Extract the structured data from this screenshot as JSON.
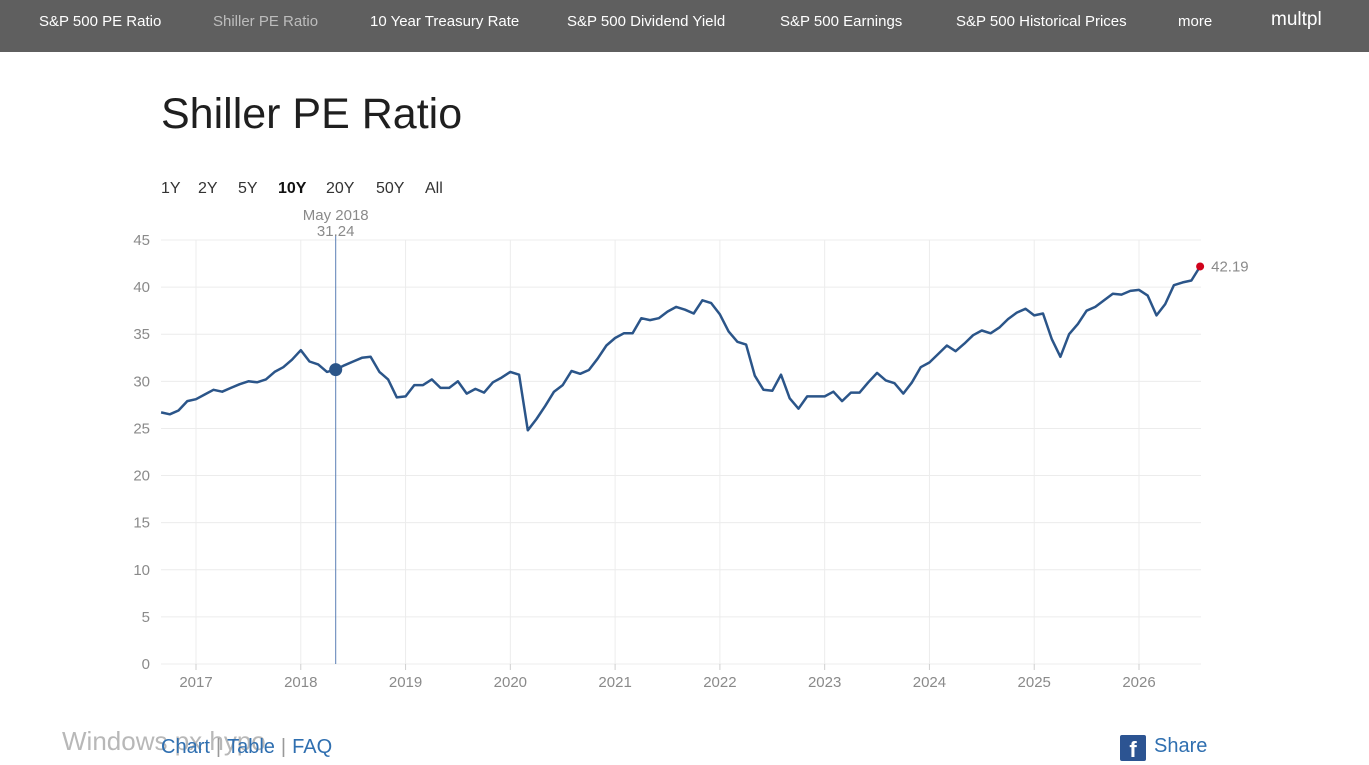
{
  "nav": {
    "items": [
      {
        "label": "S&P 500 PE Ratio"
      },
      {
        "label": "Shiller PE Ratio"
      },
      {
        "label": "10 Year Treasury Rate"
      },
      {
        "label": "S&P 500 Dividend Yield"
      },
      {
        "label": "S&P 500 Earnings"
      },
      {
        "label": "S&P 500 Historical Prices"
      },
      {
        "label": "more"
      }
    ],
    "brand": "multpl"
  },
  "page": {
    "title": "Shiller PE Ratio"
  },
  "ranges": [
    "1Y",
    "2Y",
    "5Y",
    "10Y",
    "20Y",
    "50Y",
    "All"
  ],
  "active_range": "10Y",
  "tooltip": {
    "date": "May 2018",
    "value": "31.24"
  },
  "latest_label": "42.19",
  "bottom_links": {
    "chart": "Chart",
    "table": "Table",
    "faq": "FAQ"
  },
  "share": {
    "label": "Share"
  },
  "watermark": "Windows px hypo",
  "colors": {
    "line": "#2b5589",
    "latest_point": "#d0021b",
    "crosshair": "#5b7fb5",
    "grid": "#ececec"
  },
  "chart_data": {
    "type": "line",
    "title": "",
    "xlabel": "",
    "ylabel": "",
    "ylim": [
      0,
      45
    ],
    "yticks": [
      0,
      5,
      10,
      15,
      20,
      25,
      30,
      35,
      40,
      45
    ],
    "xticks": [
      "2017",
      "2018",
      "2019",
      "2020",
      "2021",
      "2022",
      "2023",
      "2024",
      "2025",
      "2026"
    ],
    "grid": true,
    "highlight": {
      "x": "2018-05",
      "y": 31.24
    },
    "latest": {
      "x": "2026-08",
      "y": 42.19
    },
    "series": [
      {
        "x": [
          "2016-09",
          "2016-10",
          "2016-11",
          "2016-12",
          "2017-01",
          "2017-02",
          "2017-03",
          "2017-04",
          "2017-05",
          "2017-06",
          "2017-07",
          "2017-08",
          "2017-09",
          "2017-10",
          "2017-11",
          "2017-12",
          "2018-01",
          "2018-02",
          "2018-03",
          "2018-04",
          "2018-05",
          "2018-06",
          "2018-07",
          "2018-08",
          "2018-09",
          "2018-10",
          "2018-11",
          "2018-12",
          "2019-01",
          "2019-02",
          "2019-03",
          "2019-04",
          "2019-05",
          "2019-06",
          "2019-07",
          "2019-08",
          "2019-09",
          "2019-10",
          "2019-11",
          "2019-12",
          "2020-01",
          "2020-02",
          "2020-03",
          "2020-04",
          "2020-05",
          "2020-06",
          "2020-07",
          "2020-08",
          "2020-09",
          "2020-10",
          "2020-11",
          "2020-12",
          "2021-01",
          "2021-02",
          "2021-03",
          "2021-04",
          "2021-05",
          "2021-06",
          "2021-07",
          "2021-08",
          "2021-09",
          "2021-10",
          "2021-11",
          "2021-12",
          "2022-01",
          "2022-02",
          "2022-03",
          "2022-04",
          "2022-05",
          "2022-06",
          "2022-07",
          "2022-08",
          "2022-09",
          "2022-10",
          "2022-11",
          "2022-12",
          "2023-01",
          "2023-02",
          "2023-03",
          "2023-04",
          "2023-05",
          "2023-06",
          "2023-07",
          "2023-08",
          "2023-09",
          "2023-10",
          "2023-11",
          "2023-12",
          "2024-01",
          "2024-02",
          "2024-03",
          "2024-04",
          "2024-05",
          "2024-06",
          "2024-07",
          "2024-08",
          "2024-09",
          "2024-10",
          "2024-11",
          "2024-12",
          "2025-01",
          "2025-02",
          "2025-03",
          "2025-04",
          "2025-05",
          "2025-06",
          "2025-07",
          "2025-08",
          "2025-09",
          "2025-10",
          "2025-11",
          "2025-12",
          "2026-01",
          "2026-02",
          "2026-03",
          "2026-04",
          "2026-05",
          "2026-06",
          "2026-07",
          "2026-08"
        ],
        "y": [
          26.7,
          26.5,
          26.9,
          27.9,
          28.1,
          28.6,
          29.1,
          28.9,
          29.3,
          29.7,
          30.0,
          29.9,
          30.2,
          31.0,
          31.5,
          32.3,
          33.3,
          32.1,
          31.8,
          31.0,
          31.24,
          31.7,
          32.1,
          32.5,
          32.6,
          31.0,
          30.2,
          28.3,
          28.4,
          29.6,
          29.6,
          30.2,
          29.3,
          29.3,
          30.0,
          28.7,
          29.2,
          28.8,
          29.9,
          30.4,
          31.0,
          30.7,
          24.8,
          26.0,
          27.4,
          28.9,
          29.6,
          31.1,
          30.8,
          31.2,
          32.4,
          33.8,
          34.6,
          35.1,
          35.1,
          36.7,
          36.5,
          36.7,
          37.4,
          37.9,
          37.6,
          37.2,
          38.6,
          38.3,
          37.1,
          35.3,
          34.2,
          33.9,
          30.6,
          29.1,
          29.0,
          30.7,
          28.2,
          27.1,
          28.4,
          28.4,
          28.4,
          28.9,
          27.9,
          28.8,
          28.8,
          29.9,
          30.9,
          30.1,
          29.8,
          28.7,
          29.9,
          31.5,
          32.0,
          32.9,
          33.8,
          33.2,
          34.0,
          34.9,
          35.4,
          35.1,
          35.7,
          36.6,
          37.3,
          37.7,
          37.0,
          37.2,
          34.5,
          32.6,
          35.0,
          36.1,
          37.5,
          37.9,
          38.6,
          39.3,
          39.2,
          39.6,
          39.7,
          39.1,
          37.0,
          38.2,
          40.2,
          40.5,
          40.7,
          42.19
        ]
      }
    ]
  }
}
